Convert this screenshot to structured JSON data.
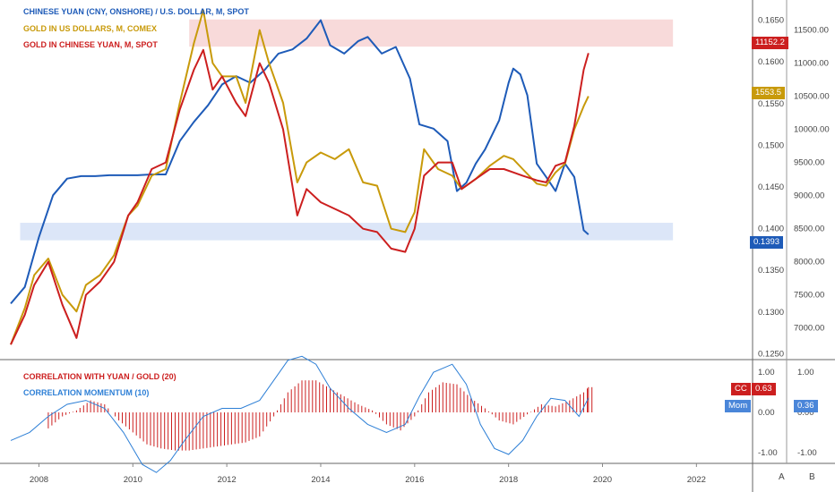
{
  "legend_top": [
    {
      "label": "CHINESE YUAN  (CNY, ONSHORE) / U.S. DOLLAR, M, SPOT",
      "color": "#1e5bb8"
    },
    {
      "label": "GOLD IN US DOLLARS, M, COMEX",
      "color": "#c89a0a"
    },
    {
      "label": "GOLD IN CHINESE YUAN, M, SPOT",
      "color": "#cc1f1f"
    }
  ],
  "legend_bottom": [
    {
      "label": "CORRELATION WITH YUAN / GOLD (20)",
      "color": "#cc1f1f"
    },
    {
      "label": "CORRELATION MOMENTUM (10)",
      "color": "#2d7fd6"
    }
  ],
  "badges": {
    "gold_cny": "11152.2",
    "gold_usd": "1553.5",
    "yuan": "0.1393",
    "cc_tag": "CC",
    "cc_value": "0.63",
    "mom_tag": "Mom",
    "mom_value": "0.36",
    "axis_a": "A",
    "axis_b": "B"
  },
  "colors": {
    "yuan": "#1e5bb8",
    "gold_usd": "#c89a0a",
    "gold_cny": "#cc1f1f",
    "correlation": "#cc1f1f",
    "momentum": "#2d7fd6",
    "resistance_zone": "#f7d4d4",
    "support_zone": "#d6e2f7"
  },
  "chart_data": [
    {
      "type": "line",
      "x_axis": {
        "type": "date",
        "range": [
          2007.4,
          2023.1
        ],
        "ticks": [
          "2008",
          "2010",
          "2012",
          "2014",
          "2016",
          "2018",
          "2020",
          "2022"
        ]
      },
      "left_axis": {
        "range": [
          0.1245,
          0.167
        ],
        "ticks": [
          "0.1250",
          "0.1300",
          "0.1350",
          "0.1400",
          "0.1450",
          "0.1500",
          "0.1550",
          "0.1600",
          "0.1650"
        ]
      },
      "right_axis": {
        "range": [
          6550,
          11900
        ],
        "ticks": [
          "7000.00",
          "7500.00",
          "8000.00",
          "8500.00",
          "9000.00",
          "9500.00",
          "10000.00",
          "10500.00",
          "11000.00",
          "11500.00"
        ]
      },
      "zones": [
        {
          "name": "resistance",
          "axis": "right",
          "x_range": [
            2011.2,
            2021.5
          ],
          "y_range": [
            11250,
            11660
          ]
        },
        {
          "name": "support",
          "axis": "left",
          "x_range": [
            2007.6,
            2021.5
          ],
          "y_range": [
            0.1386,
            0.1407
          ]
        }
      ],
      "series": [
        {
          "name": "CHINESE YUAN  (CNY, ONSHORE) / U.S. DOLLAR, M, SPOT",
          "axis": "left",
          "x": [
            2007.4,
            2007.7,
            2008.0,
            2008.3,
            2008.6,
            2008.9,
            2009.2,
            2009.5,
            2009.8,
            2010.1,
            2010.4,
            2010.7,
            2011.0,
            2011.3,
            2011.6,
            2011.9,
            2012.2,
            2012.5,
            2012.8,
            2013.1,
            2013.4,
            2013.7,
            2014.0,
            2014.2,
            2014.5,
            2014.8,
            2015.0,
            2015.3,
            2015.6,
            2015.9,
            2016.1,
            2016.4,
            2016.7,
            2016.9,
            2017.1,
            2017.3,
            2017.5,
            2017.8,
            2018.0,
            2018.1,
            2018.25,
            2018.4,
            2018.6,
            2018.8,
            2019.0,
            2019.2,
            2019.4,
            2019.6,
            2019.7
          ],
          "values": [
            0.131,
            0.133,
            0.139,
            0.144,
            0.146,
            0.1463,
            0.1463,
            0.1464,
            0.1464,
            0.1464,
            0.1465,
            0.1465,
            0.1505,
            0.1528,
            0.1548,
            0.1573,
            0.1583,
            0.1575,
            0.159,
            0.161,
            0.1615,
            0.1628,
            0.165,
            0.162,
            0.161,
            0.1625,
            0.163,
            0.161,
            0.1618,
            0.158,
            0.1525,
            0.152,
            0.1505,
            0.1445,
            0.1455,
            0.1478,
            0.1495,
            0.153,
            0.1575,
            0.1592,
            0.1585,
            0.156,
            0.1478,
            0.1462,
            0.1445,
            0.1478,
            0.1462,
            0.1398,
            0.1393
          ]
        },
        {
          "name": "GOLD IN US DOLLARS, M, COMEX",
          "axis": "right",
          "x": [
            2007.4,
            2007.7,
            2007.9,
            2008.2,
            2008.5,
            2008.8,
            2009.0,
            2009.3,
            2009.6,
            2009.9,
            2010.1,
            2010.4,
            2010.7,
            2011.0,
            2011.3,
            2011.5,
            2011.7,
            2011.9,
            2012.2,
            2012.4,
            2012.7,
            2012.9,
            2013.2,
            2013.5,
            2013.7,
            2014.0,
            2014.3,
            2014.6,
            2014.9,
            2015.2,
            2015.5,
            2015.8,
            2016.0,
            2016.2,
            2016.5,
            2016.8,
            2017.0,
            2017.3,
            2017.6,
            2017.9,
            2018.1,
            2018.3,
            2018.6,
            2018.8,
            2019.0,
            2019.2,
            2019.4,
            2019.6,
            2019.7
          ],
          "values": [
            6750,
            7300,
            7800,
            8050,
            7500,
            7250,
            7650,
            7800,
            8100,
            8700,
            8850,
            9300,
            9400,
            10400,
            11300,
            11800,
            11000,
            10800,
            10800,
            10400,
            11500,
            11000,
            10400,
            9200,
            9500,
            9650,
            9550,
            9700,
            9200,
            9150,
            8500,
            8450,
            8750,
            9700,
            9400,
            9300,
            9100,
            9250,
            9450,
            9600,
            9550,
            9400,
            9180,
            9150,
            9350,
            9480,
            10000,
            10350,
            10500
          ]
        },
        {
          "name": "GOLD IN CHINESE YUAN, M, SPOT",
          "axis": "right",
          "x": [
            2007.4,
            2007.7,
            2007.9,
            2008.2,
            2008.5,
            2008.8,
            2009.0,
            2009.3,
            2009.6,
            2009.9,
            2010.1,
            2010.4,
            2010.7,
            2011.0,
            2011.3,
            2011.5,
            2011.7,
            2011.9,
            2012.2,
            2012.4,
            2012.7,
            2012.9,
            2013.2,
            2013.5,
            2013.7,
            2014.0,
            2014.3,
            2014.6,
            2014.9,
            2015.2,
            2015.5,
            2015.8,
            2016.0,
            2016.2,
            2016.5,
            2016.8,
            2017.0,
            2017.3,
            2017.6,
            2017.9,
            2018.1,
            2018.3,
            2018.6,
            2018.8,
            2019.0,
            2019.2,
            2019.4,
            2019.6,
            2019.7
          ],
          "values": [
            6750,
            7200,
            7650,
            8000,
            7350,
            6850,
            7500,
            7700,
            8000,
            8700,
            8900,
            9400,
            9500,
            10300,
            10900,
            11200,
            10600,
            10800,
            10400,
            10200,
            11000,
            10700,
            10000,
            8700,
            9100,
            8900,
            8800,
            8700,
            8500,
            8450,
            8200,
            8150,
            8500,
            9300,
            9500,
            9500,
            9100,
            9250,
            9400,
            9400,
            9350,
            9300,
            9230,
            9200,
            9450,
            9500,
            10050,
            10900,
            11152
          ]
        }
      ]
    },
    {
      "type": "bar",
      "x_axis": {
        "type": "date",
        "range": [
          2007.4,
          2023.1
        ]
      },
      "y_axis": {
        "range": [
          -1.25,
          1.25
        ],
        "ticks": [
          "1.00",
          "0.00",
          "-1.00"
        ]
      },
      "series": [
        {
          "name": "CORRELATION WITH YUAN / GOLD (20)",
          "type": "bar",
          "x": [
            2008.2,
            2008.5,
            2008.8,
            2009.1,
            2009.4,
            2009.7,
            2010.0,
            2010.3,
            2010.6,
            2010.9,
            2011.2,
            2011.5,
            2011.8,
            2012.1,
            2012.4,
            2012.7,
            2013.0,
            2013.3,
            2013.6,
            2013.9,
            2014.2,
            2014.5,
            2014.8,
            2015.1,
            2015.4,
            2015.7,
            2016.0,
            2016.3,
            2016.6,
            2016.9,
            2017.2,
            2017.5,
            2017.8,
            2018.1,
            2018.4,
            2018.7,
            2019.0,
            2019.3,
            2019.6,
            2019.7
          ],
          "values": [
            -0.4,
            -0.1,
            0.05,
            0.3,
            0.2,
            -0.2,
            -0.5,
            -0.8,
            -0.9,
            -0.95,
            -0.95,
            -0.9,
            -0.85,
            -0.8,
            -0.75,
            -0.6,
            -0.1,
            0.5,
            0.8,
            0.8,
            0.6,
            0.4,
            0.2,
            0.05,
            -0.3,
            -0.45,
            -0.1,
            0.5,
            0.75,
            0.7,
            0.35,
            0.1,
            -0.2,
            -0.3,
            -0.05,
            0.2,
            0.15,
            0.3,
            0.5,
            0.63
          ]
        },
        {
          "name": "CORRELATION MOMENTUM (10)",
          "type": "line",
          "x": [
            2007.4,
            2007.8,
            2008.2,
            2008.6,
            2009.0,
            2009.4,
            2009.8,
            2010.2,
            2010.5,
            2010.8,
            2011.1,
            2011.5,
            2011.9,
            2012.3,
            2012.7,
            2013.0,
            2013.3,
            2013.6,
            2013.9,
            2014.2,
            2014.6,
            2015.0,
            2015.4,
            2015.8,
            2016.1,
            2016.4,
            2016.8,
            2017.1,
            2017.4,
            2017.7,
            2018.0,
            2018.3,
            2018.6,
            2018.9,
            2019.2,
            2019.5,
            2019.7
          ],
          "values": [
            -0.7,
            -0.5,
            -0.1,
            0.2,
            0.3,
            0.1,
            -0.5,
            -1.3,
            -1.5,
            -1.2,
            -0.7,
            -0.1,
            0.1,
            0.1,
            0.3,
            0.8,
            1.3,
            1.4,
            1.2,
            0.6,
            0.1,
            -0.3,
            -0.5,
            -0.3,
            0.4,
            1.0,
            1.2,
            0.7,
            -0.3,
            -0.9,
            -1.05,
            -0.7,
            -0.1,
            0.35,
            0.3,
            -0.1,
            0.36
          ]
        }
      ]
    }
  ]
}
